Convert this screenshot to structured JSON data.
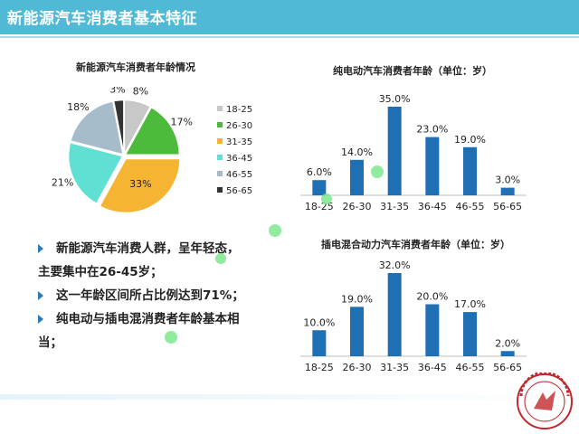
{
  "header": {
    "title": "新能源汽车消费者基本特征"
  },
  "bullets": [
    {
      "line1": "新能源汽车消费人群，呈年轻态，",
      "line2": "主要集中在26-45岁；"
    },
    {
      "line1": "这一年龄区间所占比例达到71%；"
    },
    {
      "line1": "纯电动与插电混消费者年龄基本相",
      "line2": "当；"
    }
  ],
  "colors": {
    "title_bar": "#4fb9d6",
    "bar": "#1f6fb5",
    "bullet_arrow": "#2a7ab8"
  },
  "chart_data": [
    {
      "type": "pie",
      "title": "新能源汽车消费者年龄情况",
      "categories": [
        "18-25",
        "26-30",
        "31-35",
        "36-45",
        "46-55",
        "56-65"
      ],
      "values": [
        8,
        17,
        33,
        21,
        18,
        3
      ],
      "labels": [
        "8%",
        "17%",
        "33%",
        "21%",
        "18%",
        "3%"
      ],
      "colors": [
        "#c8c8c8",
        "#4cba3a",
        "#f5b432",
        "#5fe0d2",
        "#a7bccb",
        "#333333"
      ],
      "legend": "right"
    },
    {
      "type": "bar",
      "title": "纯电动汽车消费者年龄（单位：岁）",
      "categories": [
        "18-25",
        "26-30",
        "31-35",
        "36-45",
        "46-55",
        "56-65"
      ],
      "values": [
        6.0,
        14.0,
        35.0,
        23.0,
        19.0,
        3.0
      ],
      "labels": [
        "6.0%",
        "14.0%",
        "35.0%",
        "23.0%",
        "19.0%",
        "3.0%"
      ],
      "ylim": [
        0,
        35
      ]
    },
    {
      "type": "bar",
      "title": "插电混合动力汽车消费者年龄（单位：岁）",
      "categories": [
        "18-25",
        "26-30",
        "31-35",
        "36-45",
        "46-55",
        "56-65"
      ],
      "values": [
        10.0,
        19.0,
        32.0,
        20.0,
        17.0,
        2.0
      ],
      "labels": [
        "10.0%",
        "19.0%",
        "32.0%",
        "20.0%",
        "17.0%",
        "2.0%"
      ],
      "ylim": [
        0,
        32
      ]
    }
  ]
}
